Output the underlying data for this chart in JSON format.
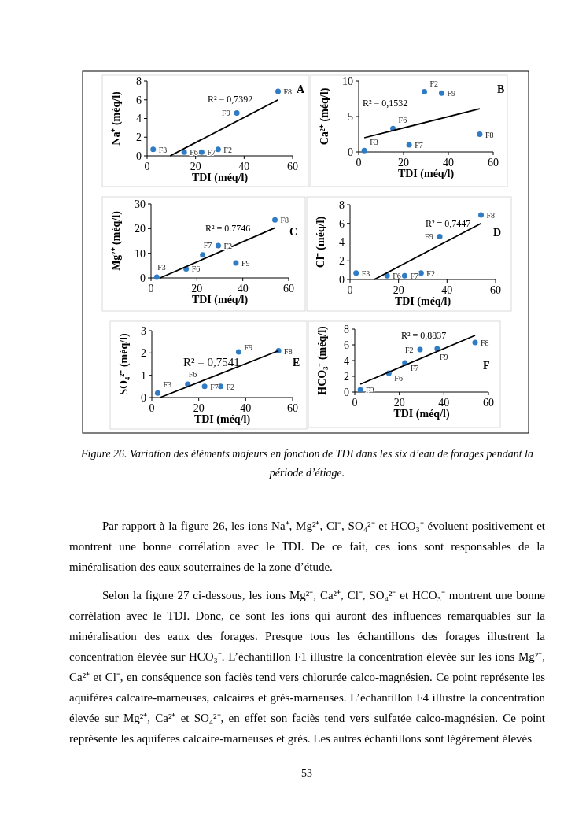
{
  "chart_data": [
    {
      "type": "scatter",
      "title": "A",
      "xlabel": "TDI (méq/l)",
      "ylabel": "Na⁺ (méq/l)",
      "x": [
        2.5,
        15.3,
        22.5,
        29.3,
        37,
        54
      ],
      "xlim": [
        0,
        60
      ],
      "xticks": [
        0,
        20,
        40,
        60
      ],
      "ylim": [
        0,
        8
      ],
      "yticks": [
        0,
        2,
        4,
        6,
        8
      ],
      "series": [
        {
          "color": "#2f7bc4",
          "marker": "circle",
          "values": [
            0.7,
            0.4,
            0.4,
            0.7,
            4.6,
            6.9
          ]
        },
        {
          "type": "line",
          "color": "#000000",
          "x": [
            9.5,
            54
          ],
          "values": [
            0,
            6
          ]
        }
      ],
      "annotations": [
        "R² = 0,7392",
        {
          "text": "F3",
          "x": 2.5,
          "y": 0.7
        },
        {
          "text": "F6",
          "x": 15.3,
          "y": 0.4
        },
        {
          "text": "F7",
          "x": 22.5,
          "y": 0.4
        },
        {
          "text": "F2",
          "x": 29.3,
          "y": 0.7
        },
        {
          "text": "F9",
          "x": 37,
          "y": 4.6
        },
        {
          "text": "F8",
          "x": 54,
          "y": 6.9
        }
      ]
    },
    {
      "type": "scatter",
      "title": "B",
      "xlabel": "TDI (méq/l)",
      "ylabel": "Ca²⁺ (méq/l)",
      "x": [
        2.5,
        15.3,
        22.5,
        29.3,
        37,
        54
      ],
      "xlim": [
        0,
        60
      ],
      "xticks": [
        0,
        20,
        40,
        60
      ],
      "ylim": [
        0,
        10
      ],
      "yticks": [
        0,
        5,
        10
      ],
      "series": [
        {
          "color": "#2f7bc4",
          "marker": "circle",
          "values": [
            0.2,
            3.3,
            1.0,
            8.5,
            8.3,
            2.5
          ]
        },
        {
          "type": "line",
          "color": "#000000",
          "x": [
            2.5,
            54
          ],
          "values": [
            2.0,
            6.1
          ]
        }
      ],
      "annotations": [
        "R² = 0,1532",
        {
          "text": "F3",
          "x": 2.5,
          "y": 0.2
        },
        {
          "text": "F6",
          "x": 15.3,
          "y": 3.3
        },
        {
          "text": "F7",
          "x": 22.5,
          "y": 1.0
        },
        {
          "text": "F2",
          "x": 29.3,
          "y": 8.5
        },
        {
          "text": "F9",
          "x": 37,
          "y": 8.3
        },
        {
          "text": "F8",
          "x": 54,
          "y": 2.5
        }
      ]
    },
    {
      "type": "scatter",
      "title": "C",
      "xlabel": "TDI (méq/l)",
      "ylabel": "Mg²⁺ (méq/l)",
      "x": [
        2.5,
        15.3,
        22.5,
        29.3,
        37,
        54
      ],
      "xlim": [
        0,
        60
      ],
      "xticks": [
        0,
        20,
        40,
        60
      ],
      "ylim": [
        0,
        30
      ],
      "yticks": [
        0,
        10,
        20,
        30
      ],
      "series": [
        {
          "color": "#2f7bc4",
          "marker": "circle",
          "values": [
            0.3,
            3.7,
            9.3,
            13.1,
            6.1,
            23.5
          ]
        },
        {
          "type": "line",
          "color": "#000000",
          "x": [
            4,
            54
          ],
          "values": [
            0,
            20.3
          ]
        }
      ],
      "annotations": [
        "R² = 0.7746",
        {
          "text": "F3",
          "x": 2.5,
          "y": 0.3
        },
        {
          "text": "F6",
          "x": 15.3,
          "y": 3.7
        },
        {
          "text": "F7",
          "x": 22.5,
          "y": 9.3
        },
        {
          "text": "F2",
          "x": 29.3,
          "y": 13.1
        },
        {
          "text": "F9",
          "x": 37,
          "y": 6.1
        },
        {
          "text": "F8",
          "x": 54,
          "y": 23.5
        }
      ]
    },
    {
      "type": "scatter",
      "title": "D",
      "xlabel": "TDI (méq/l)",
      "ylabel": "Cl⁻ (méq/l)",
      "x": [
        2.5,
        15.3,
        22.5,
        29.3,
        37,
        54
      ],
      "xlim": [
        0,
        60
      ],
      "xticks": [
        0,
        20,
        40,
        60
      ],
      "ylim": [
        0,
        8
      ],
      "yticks": [
        0,
        2,
        4,
        6,
        8
      ],
      "series": [
        {
          "color": "#2f7bc4",
          "marker": "circle",
          "values": [
            0.7,
            0.4,
            0.4,
            0.7,
            4.6,
            6.9
          ]
        },
        {
          "type": "line",
          "color": "#000000",
          "x": [
            10,
            54
          ],
          "values": [
            0,
            6
          ]
        }
      ],
      "annotations": [
        "R² = 0,7447",
        {
          "text": "F3",
          "x": 2.5,
          "y": 0.7
        },
        {
          "text": "F6",
          "x": 15.3,
          "y": 0.4
        },
        {
          "text": "F7",
          "x": 22.5,
          "y": 0.4
        },
        {
          "text": "F2",
          "x": 29.3,
          "y": 0.7
        },
        {
          "text": "F9",
          "x": 37,
          "y": 4.6
        },
        {
          "text": "F8",
          "x": 54,
          "y": 6.9
        }
      ]
    },
    {
      "type": "scatter",
      "title": "E",
      "xlabel": "TDI (méq/l)",
      "ylabel": "SO₄²⁻ (méq/l)",
      "x": [
        2.5,
        15.3,
        22.5,
        29.3,
        37,
        54
      ],
      "xlim": [
        0,
        60
      ],
      "xticks": [
        0,
        20,
        40,
        60
      ],
      "ylim": [
        0,
        3
      ],
      "yticks": [
        0,
        1,
        2,
        3
      ],
      "series": [
        {
          "color": "#2f7bc4",
          "marker": "circle",
          "values": [
            0.2,
            0.6,
            0.5,
            0.5,
            2.05,
            2.1
          ]
        },
        {
          "type": "line",
          "color": "#000000",
          "x": [
            3.5,
            54
          ],
          "values": [
            0,
            2.1
          ]
        }
      ],
      "annotations": [
        "R² = 0,7541",
        {
          "text": "F3",
          "x": 2.5,
          "y": 0.2
        },
        {
          "text": "F6",
          "x": 15.3,
          "y": 0.6
        },
        {
          "text": "F7",
          "x": 22.5,
          "y": 0.5
        },
        {
          "text": "F2",
          "x": 29.3,
          "y": 0.5
        },
        {
          "text": "F9",
          "x": 37,
          "y": 2.05
        },
        {
          "text": "F8",
          "x": 54,
          "y": 2.1
        }
      ]
    },
    {
      "type": "scatter",
      "title": "F",
      "xlabel": "TDI (méq/l)",
      "ylabel": "HCO₃⁻ (méq/l)",
      "x": [
        2.5,
        15.3,
        22.5,
        29.3,
        37,
        54
      ],
      "xlim": [
        0,
        60
      ],
      "xticks": [
        0,
        20,
        40,
        60
      ],
      "ylim": [
        0,
        8
      ],
      "yticks": [
        0,
        2,
        4,
        6,
        8
      ],
      "series": [
        {
          "color": "#2f7bc4",
          "marker": "circle",
          "values": [
            0.3,
            2.4,
            3.7,
            5.4,
            5.5,
            6.3
          ]
        },
        {
          "type": "line",
          "color": "#000000",
          "x": [
            2.5,
            54
          ],
          "values": [
            1.0,
            7.2
          ]
        }
      ],
      "annotations": [
        "R² = 0,8837",
        {
          "text": "F3",
          "x": 2.5,
          "y": 0.3
        },
        {
          "text": "F6",
          "x": 15.3,
          "y": 2.4
        },
        {
          "text": "F7",
          "x": 22.5,
          "y": 3.7
        },
        {
          "text": "F2",
          "x": 29.3,
          "y": 5.4
        },
        {
          "text": "F9",
          "x": 37,
          "y": 5.5
        },
        {
          "text": "F8",
          "x": 54,
          "y": 6.3
        }
      ]
    },
    {
      "type": "other",
      "annotations": [
        "Figure 26. Variation des éléments majeurs en fonction de TDI dans les six d’eau de forages pendant la période d’étiage.",
        "Par rapport à la figure 26, les ions Na⁺, Mg²⁺, Cl⁻, SO₄²⁻ et HCO₃⁻ évoluent positivement et montrent une bonne corrélation avec le TDI. De ce fait, ces ions sont responsables de la minéralisation des eaux souterraines de la zone d’étude.",
        "Selon la figure 27 ci-dessous, les ions Mg²⁺, Ca²⁺, Cl⁻, SO₄²⁻ et HCO₃⁻ montrent une bonne corrélation avec le TDI. Donc, ce sont les ions qui auront des influences remarquables sur la minéralisation des eaux des forages. Presque tous les échantillons des forages illustrent la concentration élevée sur HCO₃⁻. L’échantillon F1 illustre la concentration élevée sur les ions Mg²⁺, Ca²⁺ et Cl⁻, en conséquence son faciès tend vers chlorurée calco-magnésien. Ce point représente les aquifères calcaire-marneuses, calcaires et grès-marneuses. L’échantillon F4 illustre la concentration élevée sur Mg²⁺, Ca²⁺ et SO₄²⁻, en effet son faciès tend vers sulfatée calco-magnésien. Ce point représente les aquifères calcaire-marneuses et grès. Les autres échantillons sont légèrement élevés",
        "53"
      ]
    }
  ]
}
